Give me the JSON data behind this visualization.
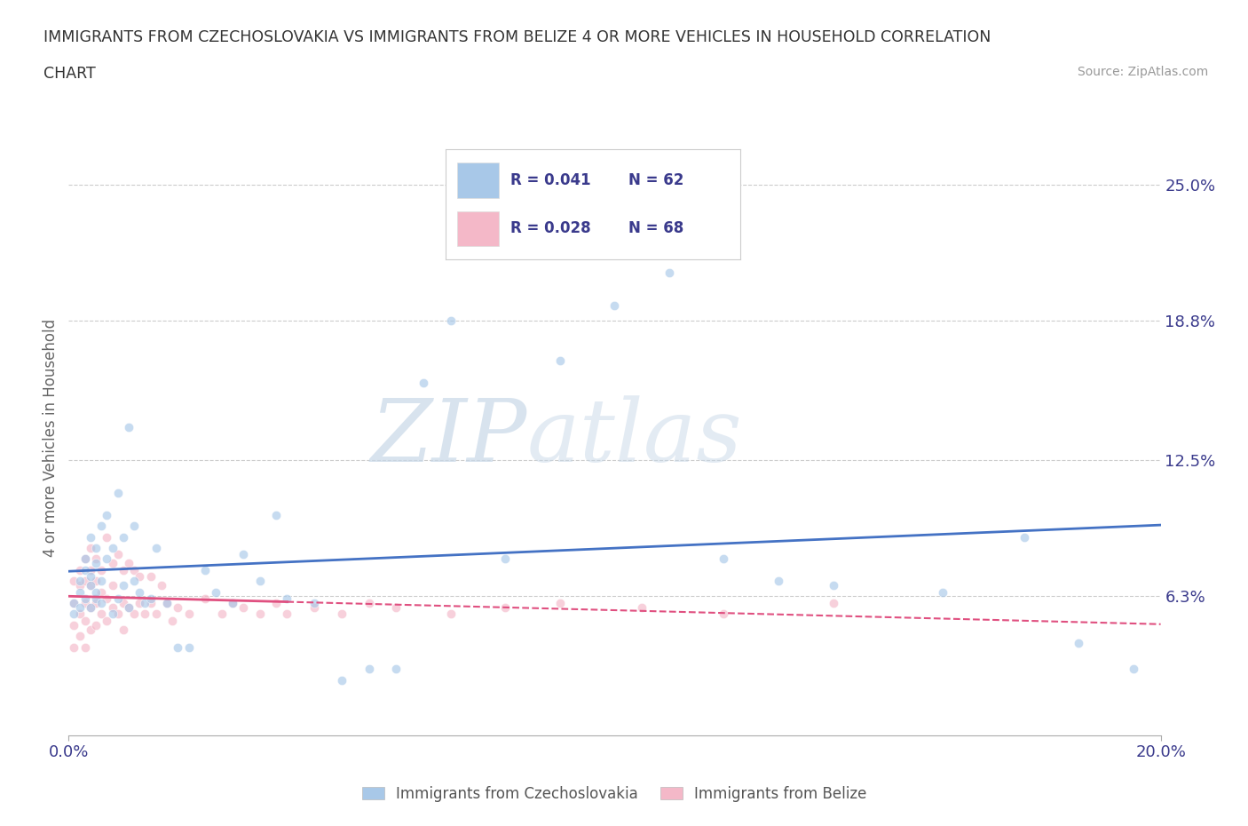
{
  "title_line1": "IMMIGRANTS FROM CZECHOSLOVAKIA VS IMMIGRANTS FROM BELIZE 4 OR MORE VEHICLES IN HOUSEHOLD CORRELATION",
  "title_line2": "CHART",
  "source_text": "Source: ZipAtlas.com",
  "ylabel": "4 or more Vehicles in Household",
  "xlim": [
    0.0,
    0.2
  ],
  "ylim": [
    0.0,
    0.27
  ],
  "ytick_positions": [
    0.063,
    0.125,
    0.188,
    0.25
  ],
  "ytick_labels": [
    "6.3%",
    "12.5%",
    "18.8%",
    "25.0%"
  ],
  "xtick_positions": [
    0.0,
    0.2
  ],
  "xtick_labels": [
    "0.0%",
    "20.0%"
  ],
  "color_czech": "#a8c8e8",
  "color_belize": "#f4b8c8",
  "line_color_czech": "#4472c4",
  "line_color_belize": "#e05080",
  "background_color": "#ffffff",
  "grid_color": "#cccccc",
  "dot_alpha": 0.65,
  "dot_size": 55,
  "czech_x": [
    0.001,
    0.001,
    0.002,
    0.002,
    0.002,
    0.003,
    0.003,
    0.003,
    0.004,
    0.004,
    0.004,
    0.004,
    0.005,
    0.005,
    0.005,
    0.005,
    0.006,
    0.006,
    0.006,
    0.007,
    0.007,
    0.008,
    0.008,
    0.009,
    0.009,
    0.01,
    0.01,
    0.011,
    0.011,
    0.012,
    0.012,
    0.013,
    0.014,
    0.015,
    0.016,
    0.018,
    0.02,
    0.022,
    0.025,
    0.027,
    0.03,
    0.032,
    0.035,
    0.038,
    0.04,
    0.045,
    0.05,
    0.055,
    0.06,
    0.065,
    0.07,
    0.08,
    0.09,
    0.1,
    0.11,
    0.12,
    0.13,
    0.14,
    0.16,
    0.175,
    0.185,
    0.195
  ],
  "czech_y": [
    0.06,
    0.055,
    0.065,
    0.07,
    0.058,
    0.075,
    0.062,
    0.08,
    0.058,
    0.068,
    0.09,
    0.072,
    0.062,
    0.085,
    0.065,
    0.078,
    0.07,
    0.095,
    0.06,
    0.08,
    0.1,
    0.055,
    0.085,
    0.062,
    0.11,
    0.068,
    0.09,
    0.058,
    0.14,
    0.07,
    0.095,
    0.065,
    0.06,
    0.062,
    0.085,
    0.06,
    0.04,
    0.04,
    0.075,
    0.065,
    0.06,
    0.082,
    0.07,
    0.1,
    0.062,
    0.06,
    0.025,
    0.03,
    0.03,
    0.16,
    0.188,
    0.08,
    0.17,
    0.195,
    0.21,
    0.08,
    0.07,
    0.068,
    0.065,
    0.09,
    0.042,
    0.03
  ],
  "belize_x": [
    0.001,
    0.001,
    0.001,
    0.001,
    0.002,
    0.002,
    0.002,
    0.002,
    0.003,
    0.003,
    0.003,
    0.003,
    0.003,
    0.004,
    0.004,
    0.004,
    0.004,
    0.004,
    0.005,
    0.005,
    0.005,
    0.005,
    0.006,
    0.006,
    0.006,
    0.007,
    0.007,
    0.007,
    0.008,
    0.008,
    0.008,
    0.009,
    0.009,
    0.01,
    0.01,
    0.01,
    0.011,
    0.011,
    0.012,
    0.012,
    0.013,
    0.013,
    0.014,
    0.015,
    0.015,
    0.016,
    0.017,
    0.018,
    0.019,
    0.02,
    0.022,
    0.025,
    0.028,
    0.03,
    0.032,
    0.035,
    0.038,
    0.04,
    0.045,
    0.05,
    0.055,
    0.06,
    0.07,
    0.08,
    0.09,
    0.105,
    0.12,
    0.14
  ],
  "belize_y": [
    0.04,
    0.05,
    0.06,
    0.07,
    0.045,
    0.055,
    0.068,
    0.075,
    0.04,
    0.052,
    0.06,
    0.07,
    0.08,
    0.048,
    0.058,
    0.068,
    0.075,
    0.085,
    0.05,
    0.06,
    0.07,
    0.08,
    0.055,
    0.065,
    0.075,
    0.052,
    0.062,
    0.09,
    0.058,
    0.068,
    0.078,
    0.055,
    0.082,
    0.048,
    0.06,
    0.075,
    0.058,
    0.078,
    0.055,
    0.075,
    0.06,
    0.072,
    0.055,
    0.06,
    0.072,
    0.055,
    0.068,
    0.06,
    0.052,
    0.058,
    0.055,
    0.062,
    0.055,
    0.06,
    0.058,
    0.055,
    0.06,
    0.055,
    0.058,
    0.055,
    0.06,
    0.058,
    0.055,
    0.058,
    0.06,
    0.058,
    0.055,
    0.06
  ],
  "watermark_zip": "ZIP",
  "watermark_atlas": "atlas",
  "legend_R_czech": "R = 0.041",
  "legend_N_czech": "N = 62",
  "legend_R_belize": "R = 0.028",
  "legend_N_belize": "N = 68"
}
